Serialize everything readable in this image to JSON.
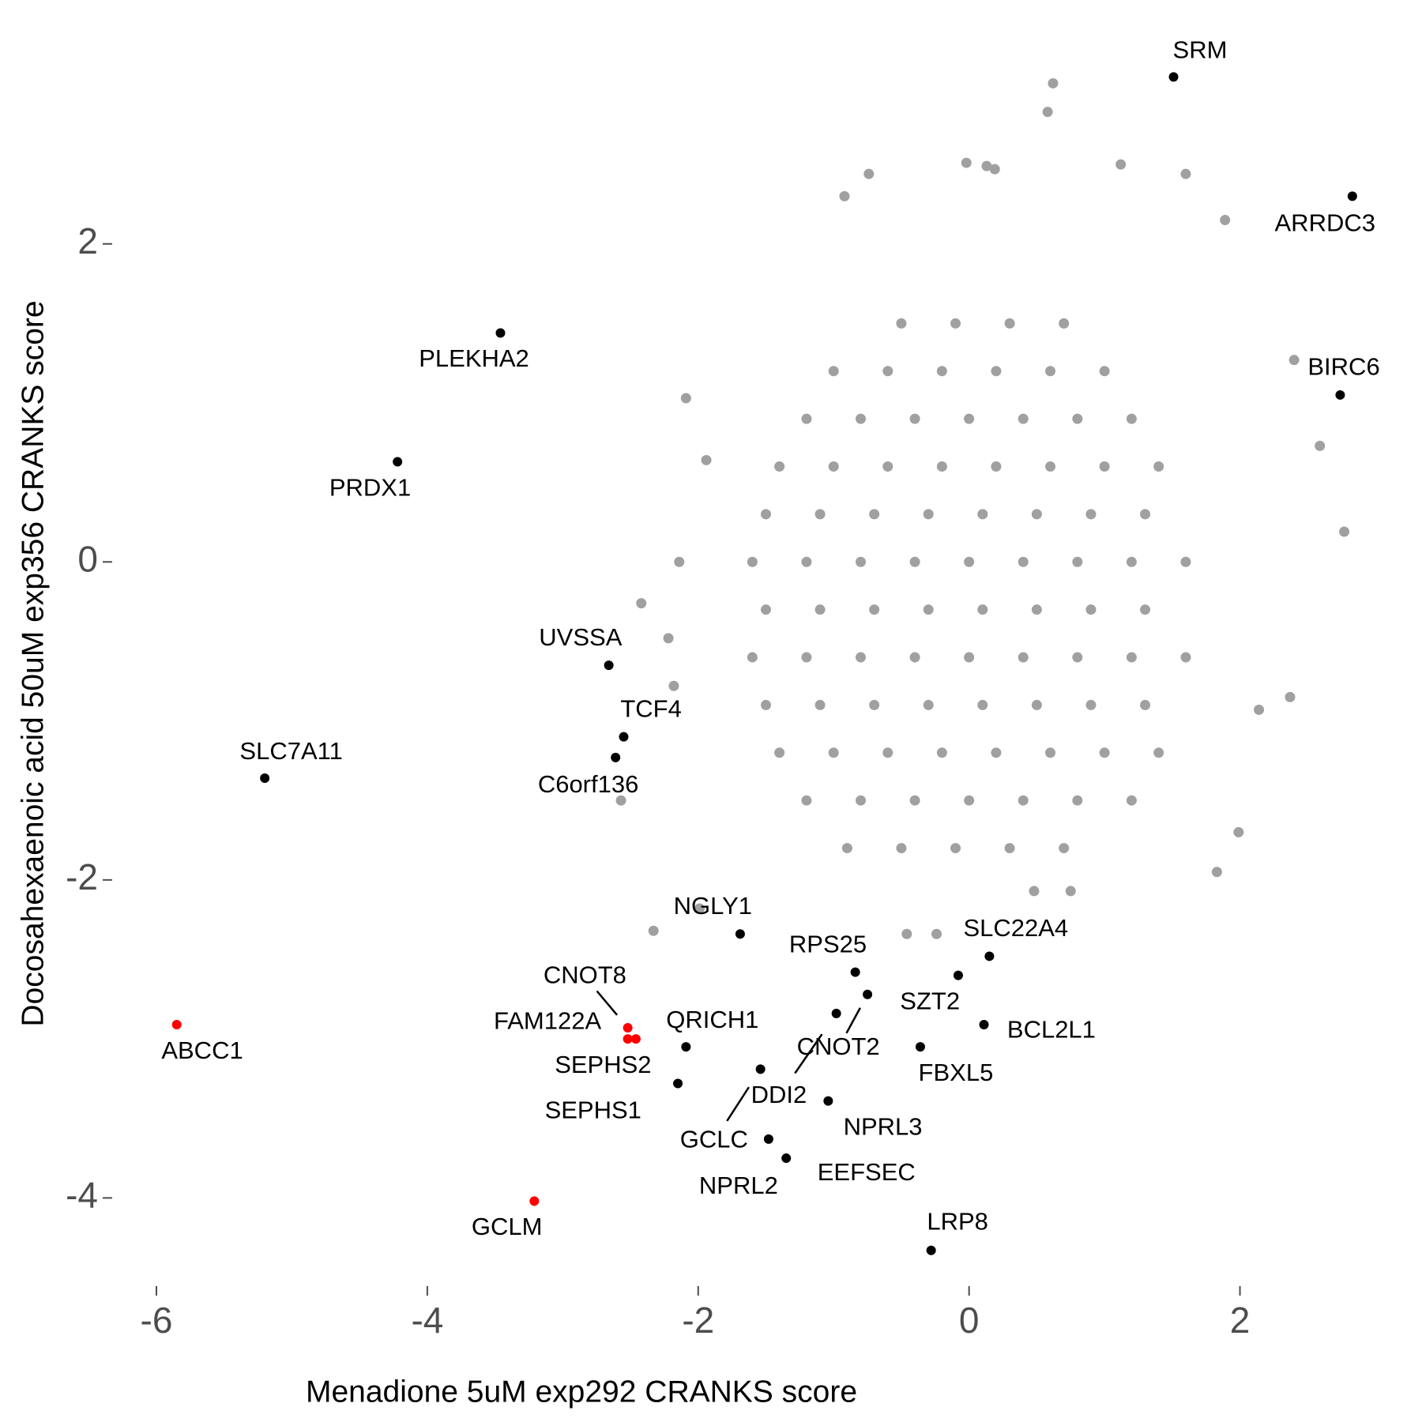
{
  "chart_data": {
    "type": "scatter",
    "x_label": "Menadione 5uM exp292 CRANKS score",
    "y_label": "Docosahexaenoic acid 50uM exp356 CRANKS score",
    "xlim": [
      -6.28,
      3.14
    ],
    "ylim": [
      -4.49,
      3.36
    ],
    "xticks": [
      -6,
      -4,
      -2,
      0,
      2
    ],
    "yticks": [
      -4,
      -2,
      0,
      2
    ],
    "series": [
      {
        "color": "#a0a0a0",
        "x": [
          -0.5,
          -0.1,
          0.3,
          0.7,
          -1.0,
          -0.6,
          -0.2,
          0.2,
          0.6,
          1.0,
          -1.2,
          -0.8,
          -0.4,
          0,
          0.4,
          0.8,
          1.2,
          -1.4,
          -1.0,
          -0.6,
          -0.2,
          0.2,
          0.6,
          1.0,
          1.4,
          -1.5,
          -1.1,
          -0.7,
          -0.3,
          0.1,
          0.5,
          0.9,
          1.3,
          -1.6,
          -1.2,
          -0.8,
          -0.4,
          0,
          0.4,
          0.8,
          1.2,
          1.6,
          -1.5,
          -1.1,
          -0.7,
          -0.3,
          0.1,
          0.5,
          0.9,
          1.3,
          -1.6,
          -1.2,
          -0.8,
          -0.4,
          0,
          0.4,
          0.8,
          1.2,
          1.6,
          -1.5,
          -1.1,
          -0.7,
          -0.3,
          0.1,
          0.5,
          0.9,
          1.3,
          -1.4,
          -1.0,
          -0.6,
          -0.2,
          0.2,
          0.6,
          1.0,
          1.4,
          -1.2,
          -0.8,
          -0.4,
          0,
          0.4,
          0.8,
          1.2,
          -0.9,
          -0.5,
          -0.1,
          0.3,
          0.7,
          0.62,
          0.58,
          1.12,
          1.6,
          -0.02,
          0.13,
          0.19,
          -0.74,
          -0.92,
          1.89,
          2.4,
          2.59,
          2.77,
          2.37,
          1.99,
          2.14,
          -2.14,
          -2.09,
          -1.94,
          -2.33,
          -2.42,
          -2.22,
          -2.18,
          -2.57,
          -1.99,
          -0.46,
          -0.24,
          0.75,
          0.48,
          1.83
        ],
        "y": [
          1.5,
          1.5,
          1.5,
          1.5,
          1.2,
          1.2,
          1.2,
          1.2,
          1.2,
          1.2,
          0.9,
          0.9,
          0.9,
          0.9,
          0.9,
          0.9,
          0.9,
          0.6,
          0.6,
          0.6,
          0.6,
          0.6,
          0.6,
          0.6,
          0.6,
          0.3,
          0.3,
          0.3,
          0.3,
          0.3,
          0.3,
          0.3,
          0.3,
          0,
          0,
          0,
          0,
          0,
          0,
          0,
          0,
          0,
          -0.3,
          -0.3,
          -0.3,
          -0.3,
          -0.3,
          -0.3,
          -0.3,
          -0.3,
          -0.6,
          -0.6,
          -0.6,
          -0.6,
          -0.6,
          -0.6,
          -0.6,
          -0.6,
          -0.6,
          -0.9,
          -0.9,
          -0.9,
          -0.9,
          -0.9,
          -0.9,
          -0.9,
          -0.9,
          -1.2,
          -1.2,
          -1.2,
          -1.2,
          -1.2,
          -1.2,
          -1.2,
          -1.2,
          -1.5,
          -1.5,
          -1.5,
          -1.5,
          -1.5,
          -1.5,
          -1.5,
          -1.8,
          -1.8,
          -1.8,
          -1.8,
          -1.8,
          3.01,
          2.83,
          2.5,
          2.44,
          2.51,
          2.49,
          2.47,
          2.44,
          2.3,
          2.15,
          1.27,
          0.73,
          0.19,
          -0.85,
          -1.7,
          -0.93,
          0.0,
          1.03,
          0.64,
          -2.32,
          -0.26,
          -0.48,
          -0.78,
          -1.5,
          -2.18,
          -2.34,
          -2.34,
          -2.07,
          -2.07,
          -1.95
        ]
      },
      {
        "color": "#000000",
        "labels": [
          "SRM",
          "ARRDC3",
          "BIRC6",
          "PLEKHA2",
          "PRDX1",
          "UVSSA",
          "TCF4",
          "C6orf136",
          "SLC7A11",
          "NGLY1",
          "RPS25",
          "SLC22A4",
          "SZT2",
          "BCL2L1",
          "FBXL5",
          "CNOT2",
          "DDI2",
          "NPRL3",
          "QRICH1",
          "SEPHS1",
          "GCLC",
          "NPRL2",
          "EEFSEC",
          "LRP8"
        ],
        "x": [
          1.51,
          2.83,
          2.74,
          -3.46,
          -4.22,
          -2.66,
          -2.55,
          -2.61,
          -5.2,
          -1.69,
          -0.84,
          0.15,
          -0.08,
          0.11,
          -0.36,
          -0.75,
          -0.98,
          -1.04,
          -2.09,
          -2.15,
          -1.54,
          -1.48,
          -1.35,
          -0.28
        ],
        "y": [
          3.05,
          2.3,
          1.05,
          1.44,
          0.63,
          -0.65,
          -1.1,
          -1.23,
          -1.36,
          -2.34,
          -2.58,
          -2.48,
          -2.6,
          -2.91,
          -3.05,
          -2.72,
          -2.84,
          -3.39,
          -3.05,
          -3.28,
          -3.19,
          -3.63,
          -3.75,
          -4.33
        ]
      },
      {
        "color": "#ff0000",
        "labels": [
          "ABCC1",
          "GCLM",
          "CNOT8",
          "FAM122A",
          "SEPHS2"
        ],
        "x": [
          -5.85,
          -3.21,
          -2.52,
          -2.52,
          -2.46
        ],
        "y": [
          -2.91,
          -4.02,
          -2.93,
          -3.0,
          -3.0
        ]
      }
    ]
  }
}
